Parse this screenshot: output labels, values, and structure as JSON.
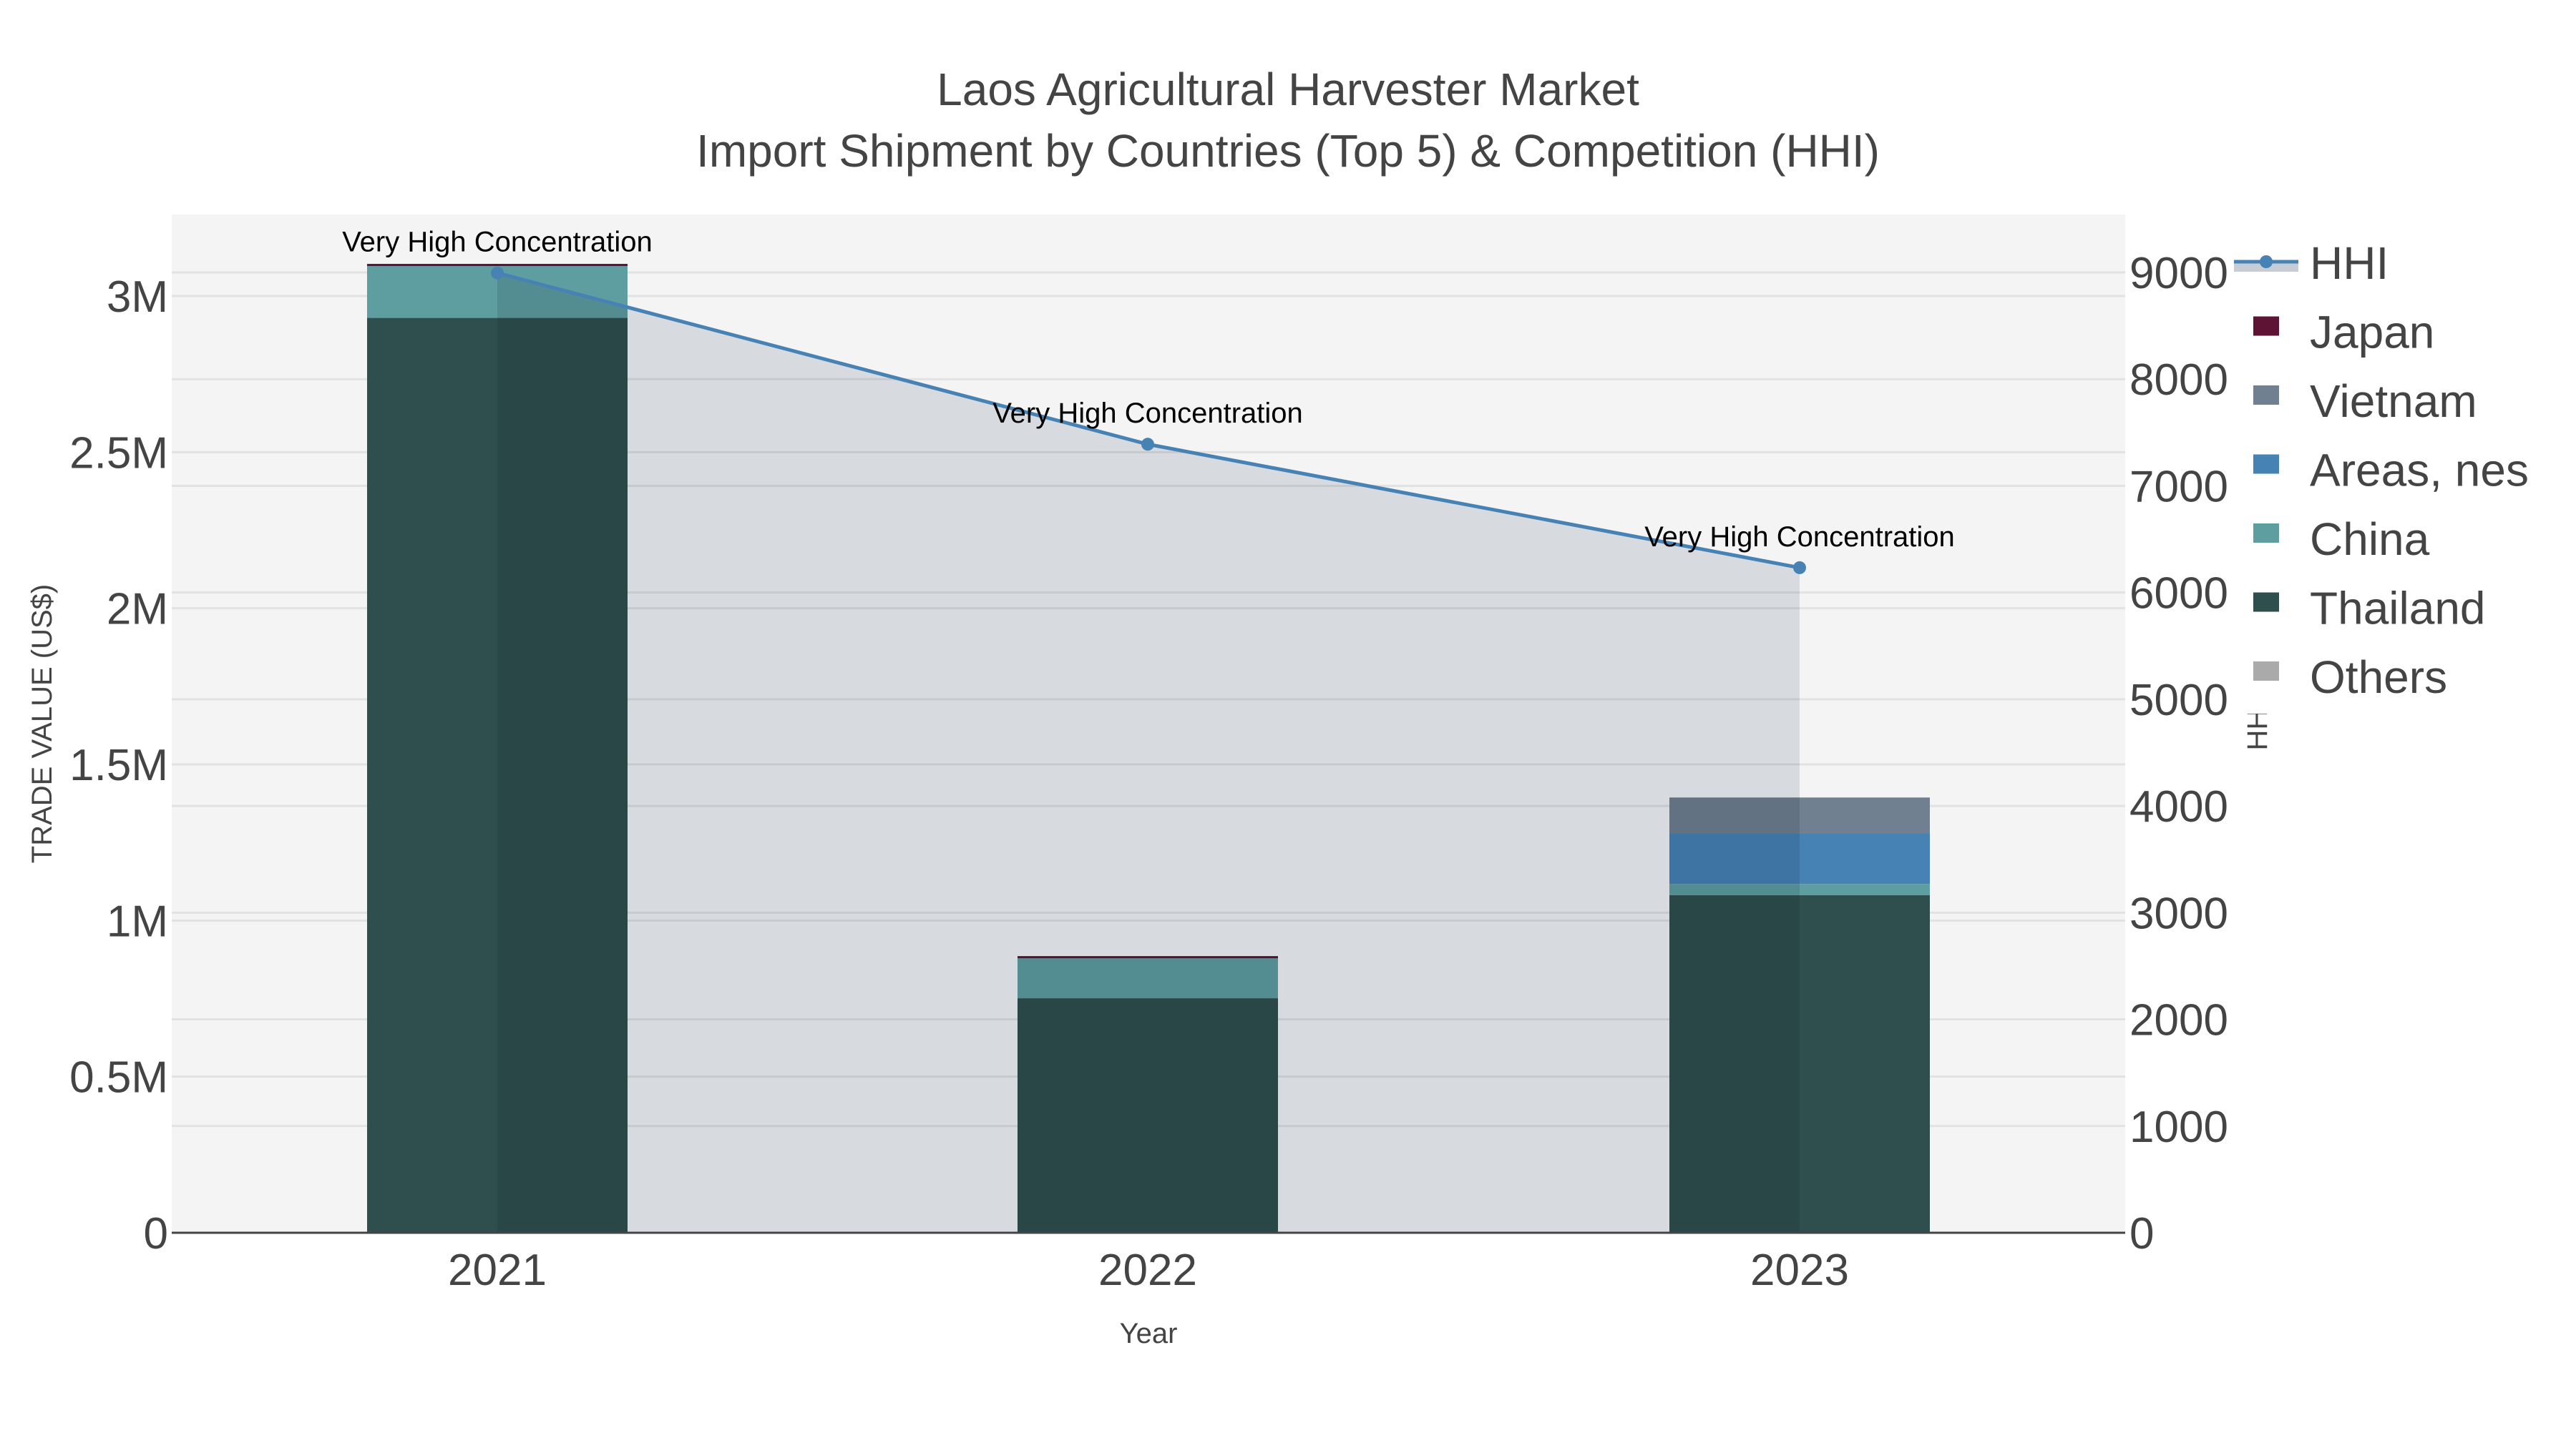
{
  "title": {
    "line1": "Laos Agricultural Harvester Market",
    "line2": "Import Shipment by Countries (Top 5) & Competition (HHI)"
  },
  "axes": {
    "x_title": "Year",
    "y_left_title": "TRADE VALUE (US$)",
    "y_right_title": "HHI",
    "y_left_ticks": [
      {
        "value": 0,
        "label": "0"
      },
      {
        "value": 500000,
        "label": "0.5M"
      },
      {
        "value": 1000000,
        "label": "1M"
      },
      {
        "value": 1500000,
        "label": "1.5M"
      },
      {
        "value": 2000000,
        "label": "2M"
      },
      {
        "value": 2500000,
        "label": "2.5M"
      },
      {
        "value": 3000000,
        "label": "3M"
      }
    ],
    "y_right_ticks": [
      {
        "value": 0,
        "label": "0"
      },
      {
        "value": 1000,
        "label": "1000"
      },
      {
        "value": 2000,
        "label": "2000"
      },
      {
        "value": 3000,
        "label": "3000"
      },
      {
        "value": 4000,
        "label": "4000"
      },
      {
        "value": 5000,
        "label": "5000"
      },
      {
        "value": 6000,
        "label": "6000"
      },
      {
        "value": 7000,
        "label": "7000"
      },
      {
        "value": 8000,
        "label": "8000"
      },
      {
        "value": 9000,
        "label": "9000"
      }
    ]
  },
  "legend": [
    {
      "name": "HHI",
      "type": "line",
      "color": "#4682b4",
      "fill": "#c8cdd5"
    },
    {
      "name": "Japan",
      "type": "bar",
      "color": "#5e1234"
    },
    {
      "name": "Vietnam",
      "type": "bar",
      "color": "#708090"
    },
    {
      "name": "Areas, nes",
      "type": "bar",
      "color": "#4682b4"
    },
    {
      "name": "China",
      "type": "bar",
      "color": "#5f9ea0"
    },
    {
      "name": "Thailand",
      "type": "bar",
      "color": "#2f4f4f"
    },
    {
      "name": "Others",
      "type": "bar",
      "color": "#aaaaaa"
    }
  ],
  "colors": {
    "plot_bg": "#f4f4f4",
    "grid": "#e2e2e2",
    "axis_text": "#444444",
    "hhi_line": "#4682b4",
    "hhi_fill": "#c8cdd5"
  },
  "chart_data": {
    "type": "bar",
    "title": "Laos Agricultural Harvester Market — Import Shipment by Countries (Top 5) & Competition (HHI)",
    "xlabel": "Year",
    "ylabel": "TRADE VALUE (US$)",
    "y2label": "HHI",
    "categories": [
      "2021",
      "2022",
      "2023"
    ],
    "stacked": true,
    "ylim": [
      0,
      3260000
    ],
    "y2lim": [
      0,
      9550
    ],
    "series": [
      {
        "name": "Thailand",
        "axis": "left",
        "values": [
          2930000,
          751000,
          1081000
        ]
      },
      {
        "name": "China",
        "axis": "left",
        "values": [
          166000,
          128000,
          36000
        ]
      },
      {
        "name": "Areas, nes",
        "axis": "left",
        "values": [
          0,
          0,
          163000
        ]
      },
      {
        "name": "Vietnam",
        "axis": "left",
        "values": [
          0,
          0,
          114000
        ]
      },
      {
        "name": "Japan",
        "axis": "left",
        "values": [
          7000,
          7000,
          0
        ]
      },
      {
        "name": "Others",
        "axis": "left",
        "values": [
          0,
          0,
          0
        ]
      },
      {
        "name": "HHI",
        "axis": "right",
        "type": "line+area",
        "values": [
          8995,
          7390,
          6233
        ]
      }
    ],
    "annotations": [
      {
        "x": "2021",
        "text": "Very High Concentration"
      },
      {
        "x": "2022",
        "text": "Very High Concentration"
      },
      {
        "x": "2023",
        "text": "Very High Concentration"
      }
    ],
    "legend_position": "right",
    "grid": true
  }
}
